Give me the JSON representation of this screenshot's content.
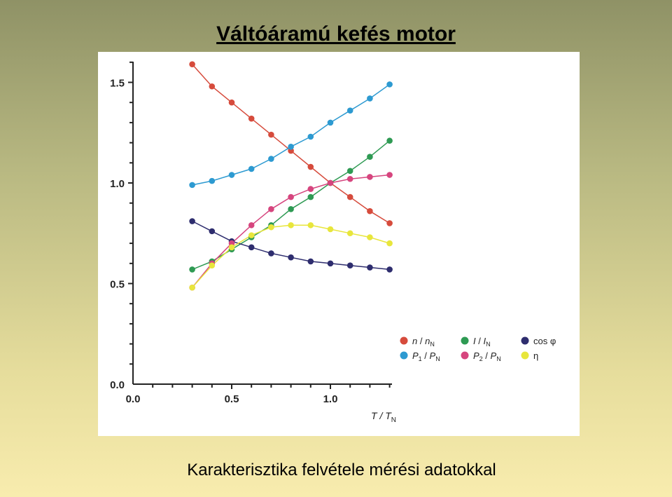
{
  "title": "Váltóáramú kefés motor",
  "caption": "Karakterisztika felvétele mérési adatokkal",
  "chart_data": {
    "type": "line",
    "xlabel": "T / T_N",
    "xlim": [
      0,
      1.3
    ],
    "ylim": [
      0,
      1.6
    ],
    "x_ticks": [
      "0.0",
      "0.5",
      "1.0"
    ],
    "y_ticks": [
      "0.0",
      "0.5",
      "1.0",
      "1.5"
    ],
    "x": [
      0.3,
      0.4,
      0.5,
      0.6,
      0.7,
      0.8,
      0.9,
      1.0,
      1.1,
      1.2,
      1.3
    ],
    "series": [
      {
        "key": "n",
        "name": "n / n_N",
        "color": "#d64b3c",
        "values": [
          1.59,
          1.48,
          1.4,
          1.32,
          1.24,
          1.16,
          1.08,
          1.0,
          0.93,
          0.86,
          0.8
        ]
      },
      {
        "key": "I",
        "name": "I / I_N",
        "color": "#2e9a53",
        "values": [
          0.57,
          0.61,
          0.67,
          0.73,
          0.79,
          0.87,
          0.93,
          1.0,
          1.06,
          1.13,
          1.21
        ]
      },
      {
        "key": "cos",
        "name": "cos φ",
        "color": "#2e2d6e",
        "values": [
          0.81,
          0.76,
          0.71,
          0.68,
          0.65,
          0.63,
          0.61,
          0.6,
          0.59,
          0.58,
          0.57
        ]
      },
      {
        "key": "P1",
        "name": "P_1 / P_N",
        "color": "#2d9ad1",
        "values": [
          0.99,
          1.01,
          1.04,
          1.07,
          1.12,
          1.18,
          1.23,
          1.3,
          1.36,
          1.42,
          1.49
        ]
      },
      {
        "key": "P2",
        "name": "P_2 / P_N",
        "color": "#d6457e",
        "values": [
          0.48,
          0.6,
          0.7,
          0.79,
          0.87,
          0.93,
          0.97,
          1.0,
          1.02,
          1.03,
          1.04
        ]
      },
      {
        "key": "eta",
        "name": "η",
        "color": "#e8e63c",
        "values": [
          0.48,
          0.59,
          0.68,
          0.74,
          0.78,
          0.79,
          0.79,
          0.77,
          0.75,
          0.73,
          0.7
        ]
      }
    ],
    "legend": "bottom-right",
    "grid": false
  }
}
